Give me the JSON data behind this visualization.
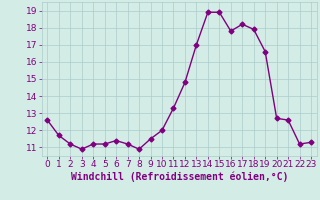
{
  "x": [
    0,
    1,
    2,
    3,
    4,
    5,
    6,
    7,
    8,
    9,
    10,
    11,
    12,
    13,
    14,
    15,
    16,
    17,
    18,
    19,
    20,
    21,
    22,
    23
  ],
  "y": [
    12.6,
    11.7,
    11.2,
    10.9,
    11.2,
    11.2,
    11.4,
    11.2,
    10.9,
    11.5,
    12.0,
    13.3,
    14.8,
    17.0,
    18.9,
    18.9,
    17.8,
    18.2,
    17.9,
    16.6,
    12.7,
    12.6,
    11.2,
    11.3
  ],
  "line_color": "#800080",
  "marker": "D",
  "marker_size": 2.5,
  "xlabel": "Windchill (Refroidissement éolien,°C)",
  "xlabel_fontsize": 7,
  "ylim": [
    10.5,
    19.5
  ],
  "yticks": [
    11,
    12,
    13,
    14,
    15,
    16,
    17,
    18,
    19
  ],
  "xticks": [
    0,
    1,
    2,
    3,
    4,
    5,
    6,
    7,
    8,
    9,
    10,
    11,
    12,
    13,
    14,
    15,
    16,
    17,
    18,
    19,
    20,
    21,
    22,
    23
  ],
  "background_color": "#d4ece6",
  "grid_color": "#aacccc",
  "tick_fontsize": 6.5,
  "line_width": 1.0
}
